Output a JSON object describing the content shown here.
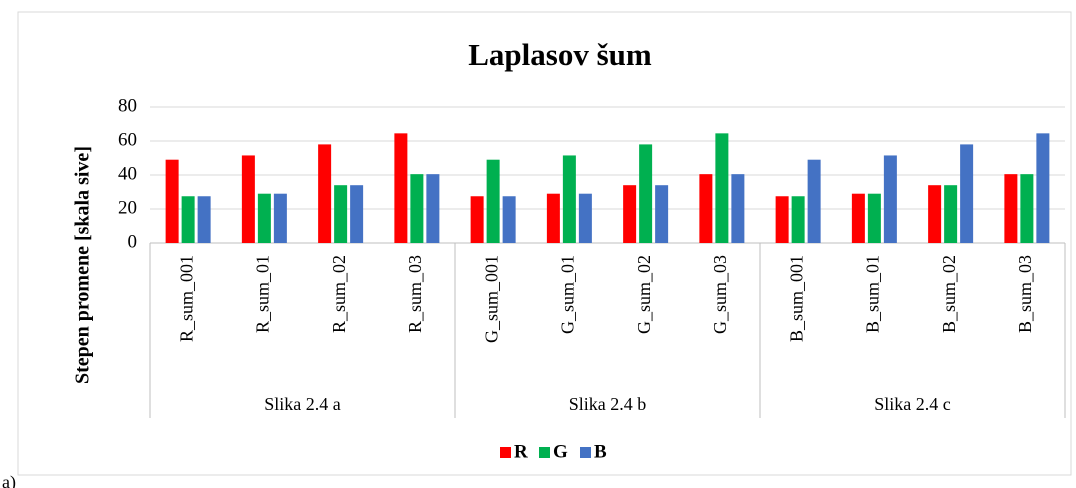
{
  "chart_data": {
    "type": "bar",
    "title": "Laplasov šum",
    "y_label": "Stepen promene [skala sive]",
    "categories": [
      "R_sum_001",
      "R_sum_01",
      "R_sum_02",
      "R_sum_03",
      "G_sum_001",
      "G_sum_01",
      "G_sum_02",
      "G_sum_03",
      "B_sum_001",
      "B_sum_01",
      "B_sum_02",
      "B_sum_03"
    ],
    "groups": [
      "Slika 2.4 a",
      "Slika 2.4 b",
      "Slika 2.4 c"
    ],
    "series": [
      {
        "name": "R",
        "color": "#ff0000",
        "values": [
          49,
          51.5,
          58,
          64.5,
          27.5,
          29,
          34,
          40.5,
          27.5,
          29,
          34,
          40.5
        ]
      },
      {
        "name": "G",
        "color": "#00b050",
        "values": [
          27.5,
          29,
          34,
          40.5,
          49,
          51.5,
          58,
          64.5,
          27.5,
          29,
          34,
          40.5
        ]
      },
      {
        "name": "B",
        "color": "#4472c4",
        "values": [
          27.5,
          29,
          34,
          40.5,
          27.5,
          29,
          34,
          40.5,
          49,
          51.5,
          58,
          64.5
        ]
      }
    ],
    "ylim": [
      0,
      80
    ],
    "yticks": [
      0,
      20,
      40,
      60,
      80
    ],
    "grid": true,
    "legend": "bottom",
    "caption": "a)"
  }
}
